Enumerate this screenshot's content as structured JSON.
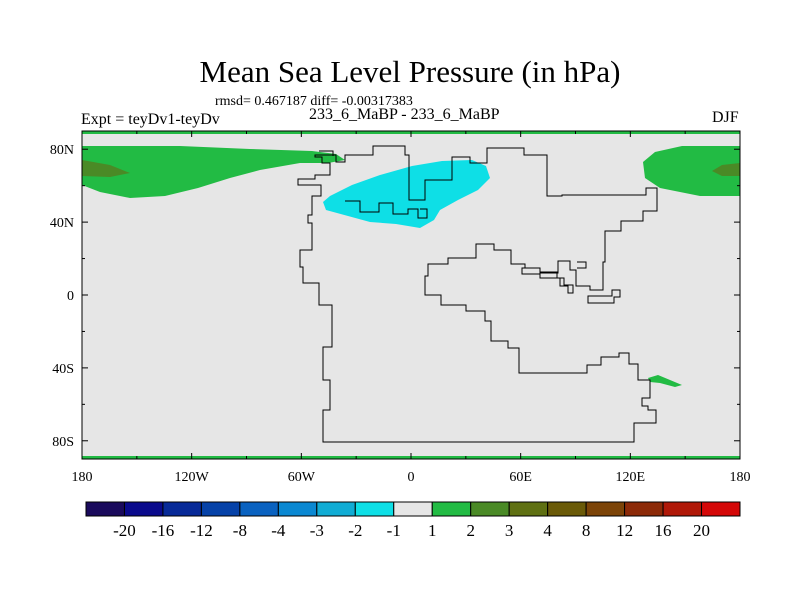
{
  "title": "Mean Sea Level Pressure (in hPa)",
  "rmsd_line": "rmsd= 0.467187 diff= -0.00317383",
  "subtitle": "233_6_MaBP - 233_6_MaBP",
  "left_label": "Expt = teyDv1-teyDv",
  "right_label": "DJF",
  "chart_data": {
    "type": "contour-map",
    "variable": "Mean Sea Level Pressure difference",
    "units": "hPa",
    "projection": "cylindrical equidistant",
    "xlim": [
      -180,
      180
    ],
    "ylim": [
      -90,
      90
    ],
    "x_ticks": [
      {
        "value": -180,
        "label": "180"
      },
      {
        "value": -120,
        "label": "120W"
      },
      {
        "value": -60,
        "label": "60W"
      },
      {
        "value": 0,
        "label": "0"
      },
      {
        "value": 60,
        "label": "60E"
      },
      {
        "value": 120,
        "label": "120E"
      },
      {
        "value": 180,
        "label": "180"
      }
    ],
    "y_ticks": [
      {
        "value": 80,
        "label": "80N"
      },
      {
        "value": 40,
        "label": "40N"
      },
      {
        "value": 0,
        "label": "0"
      },
      {
        "value": -40,
        "label": "40S"
      },
      {
        "value": -80,
        "label": "80S"
      }
    ],
    "background_color": "#e6e6e6",
    "colorbar": {
      "colors": [
        "#1a0a5c",
        "#0a0a8c",
        "#082a98",
        "#0642a8",
        "#0a62c0",
        "#0a88d2",
        "#10acd4",
        "#0edfe6",
        "#e6e6e6",
        "#22bb44",
        "#4a8a26",
        "#5f7012",
        "#6a5a08",
        "#7c4408",
        "#8c2a08",
        "#b01808",
        "#d40808"
      ],
      "labels": [
        "-20",
        "-16",
        "-12",
        "-8",
        "-4",
        "-3",
        "-2",
        "-1",
        "1",
        "2",
        "3",
        "4",
        "8",
        "12",
        "16",
        "20"
      ]
    },
    "anomalies": [
      {
        "region": "North Pacific / Arctic (west)",
        "level": "2",
        "color": "#22bb44",
        "lon_range": [
          -180,
          -112
        ],
        "lat_range": [
          52,
          84
        ]
      },
      {
        "region": "North Pacific core (west)",
        "level": "3",
        "color": "#4a8a26",
        "lon_range": [
          -180,
          -160
        ],
        "lat_range": [
          64,
          74
        ]
      },
      {
        "region": "Arctic Siberia (east)",
        "level": "2",
        "color": "#22bb44",
        "lon_range": [
          125,
          180
        ],
        "lat_range": [
          54,
          82
        ]
      },
      {
        "region": "Arctic Siberia core (east)",
        "level": "3",
        "color": "#4a8a26",
        "lon_range": [
          164,
          180
        ],
        "lat_range": [
          63,
          72
        ]
      },
      {
        "region": "North Atlantic / Europe",
        "level": "-1",
        "color": "#0edfe6",
        "lon_range": [
          -46,
          40
        ],
        "lat_range": [
          37,
          73
        ]
      },
      {
        "region": "South Pacific",
        "level": "2",
        "color": "#22bb44",
        "lon_range": [
          127,
          147
        ],
        "lat_range": [
          -51,
          -45
        ]
      }
    ]
  }
}
